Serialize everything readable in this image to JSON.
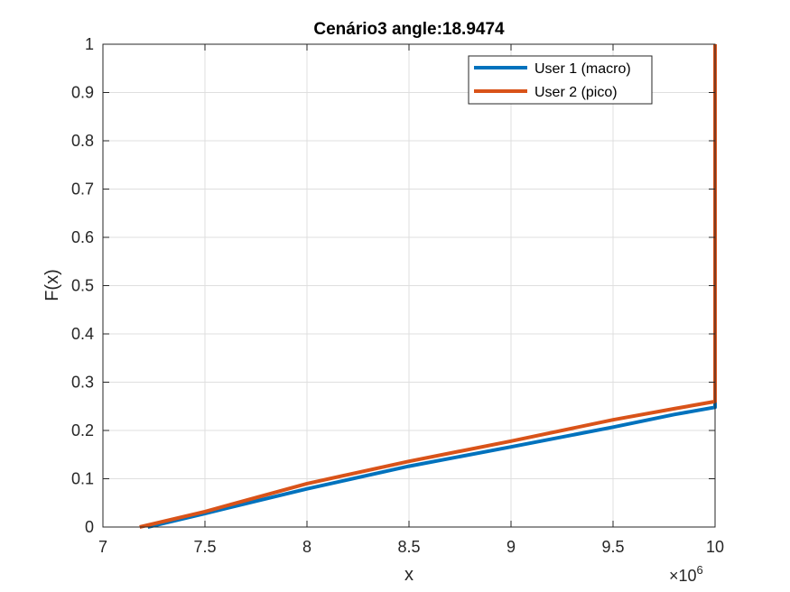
{
  "chart_data": {
    "type": "line",
    "title": "Cenário3 angle:18.9474",
    "xlabel": "x",
    "ylabel": "F(x)",
    "x_multiplier_label": "×10",
    "x_multiplier_exponent": "6",
    "xlim": [
      7,
      10
    ],
    "ylim": [
      0,
      1
    ],
    "x_ticks": [
      7,
      7.5,
      8,
      8.5,
      9,
      9.5,
      10
    ],
    "x_tick_labels": [
      "7",
      "7.5",
      "8",
      "8.5",
      "9",
      "9.5",
      "10"
    ],
    "y_ticks": [
      0,
      0.1,
      0.2,
      0.3,
      0.4,
      0.5,
      0.6,
      0.7,
      0.8,
      0.9,
      1
    ],
    "y_tick_labels": [
      "0",
      "0.1",
      "0.2",
      "0.3",
      "0.4",
      "0.5",
      "0.6",
      "0.7",
      "0.8",
      "0.9",
      "1"
    ],
    "grid": true,
    "legend_position": "top-right",
    "series": [
      {
        "name": "User 1 (macro)",
        "color": "#0072BD",
        "x": [
          7.22,
          7.5,
          8.0,
          8.5,
          9.0,
          9.5,
          9.8,
          10.0,
          10.0
        ],
        "y": [
          0.0,
          0.028,
          0.079,
          0.126,
          0.166,
          0.207,
          0.233,
          0.248,
          1.0
        ]
      },
      {
        "name": "User 2 (pico)",
        "color": "#D95319",
        "x": [
          7.18,
          7.5,
          8.0,
          8.5,
          9.0,
          9.5,
          9.8,
          10.0,
          10.0
        ],
        "y": [
          0.0,
          0.032,
          0.09,
          0.136,
          0.178,
          0.222,
          0.245,
          0.26,
          1.0
        ]
      }
    ]
  }
}
